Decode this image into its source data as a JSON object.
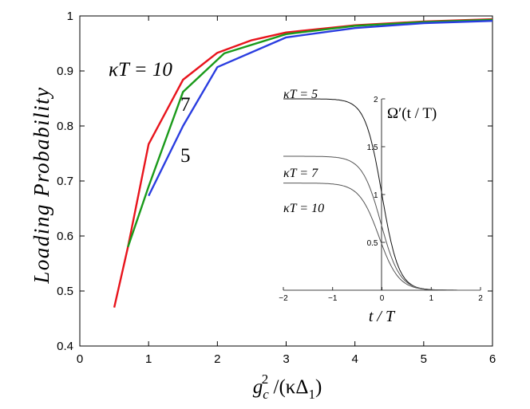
{
  "chart_data": [
    {
      "type": "line",
      "ylabel": "Loading Probability",
      "xlabel": "g_c^2 /(κΔ_1)",
      "xlim": [
        0,
        6
      ],
      "ylim": [
        0.4,
        1.0
      ],
      "x_ticks": [
        "0",
        "1",
        "2",
        "3",
        "4",
        "5",
        "6"
      ],
      "y_ticks": [
        "0.4",
        "0.5",
        "0.6",
        "0.7",
        "0.8",
        "0.9",
        "1"
      ],
      "grid": false,
      "annotations": [
        "κT = 10",
        "7",
        "5"
      ],
      "series": [
        {
          "color": "#e8141c",
          "x": [
            0.5,
            0.7,
            1.0,
            1.5,
            2.0,
            2.5,
            3.0,
            4.0,
            5.0,
            6.0
          ],
          "y": [
            0.47,
            0.58,
            0.767,
            0.884,
            0.933,
            0.956,
            0.97,
            0.983,
            0.99,
            0.994
          ]
        },
        {
          "color": "#1a9a1a",
          "x": [
            0.7,
            1.0,
            1.5,
            2.1,
            3.0,
            4.0,
            5.0,
            6.0
          ],
          "y": [
            0.58,
            0.69,
            0.862,
            0.932,
            0.967,
            0.982,
            0.989,
            0.993
          ]
        },
        {
          "color": "#2a3de0",
          "x": [
            1.0,
            1.5,
            2.0,
            3.0,
            4.0,
            5.0,
            6.0
          ],
          "y": [
            0.673,
            0.8,
            0.907,
            0.961,
            0.978,
            0.987,
            0.991
          ]
        }
      ]
    },
    {
      "type": "line",
      "xlabel": "t / T",
      "ylabel": "Ω′(t / T)",
      "xlim": [
        -2,
        2
      ],
      "ylim": [
        0,
        2.0
      ],
      "x_ticks": [
        "−2",
        "−1",
        "0",
        "1",
        "2"
      ],
      "y_ticks": [
        "0.5",
        "1",
        "1.5",
        "2"
      ],
      "series": [
        {
          "name": "κT = 5",
          "plateau": 2.0,
          "center": 0.0,
          "width": 0.17
        },
        {
          "name": "κT = 7",
          "plateau": 1.4,
          "center": -0.02,
          "width": 0.19
        },
        {
          "name": "κT = 10",
          "plateau": 1.12,
          "center": -0.06,
          "width": 0.2
        }
      ]
    }
  ]
}
